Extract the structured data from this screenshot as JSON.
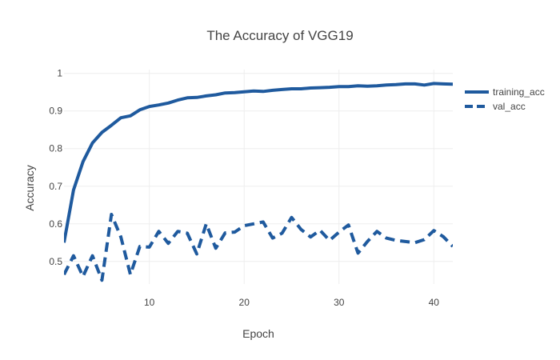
{
  "chart_data": {
    "type": "line",
    "title": "The Accuracy of VGG19",
    "xlabel": "Epoch",
    "ylabel": "Accuracy",
    "xlim": [
      1,
      42
    ],
    "ylim": [
      0.44,
      1.01
    ],
    "x_ticks": [
      10,
      20,
      30,
      40
    ],
    "y_ticks": [
      0.5,
      0.6,
      0.7,
      0.8,
      0.9,
      1
    ],
    "y_tick_labels": [
      "0.5",
      "0.6",
      "0.7",
      "0.8",
      "0.9",
      "1"
    ],
    "grid": true,
    "legend_position": "right",
    "series": [
      {
        "name": "training_acc",
        "color": "#1f5a9e",
        "dash": "solid",
        "x": [
          1,
          2,
          3,
          4,
          5,
          6,
          7,
          8,
          9,
          10,
          11,
          12,
          13,
          14,
          15,
          16,
          17,
          18,
          19,
          20,
          21,
          22,
          23,
          24,
          25,
          26,
          27,
          28,
          29,
          30,
          31,
          32,
          33,
          34,
          35,
          36,
          37,
          38,
          39,
          40,
          41,
          42
        ],
        "values": [
          0.55,
          0.69,
          0.765,
          0.815,
          0.843,
          0.862,
          0.882,
          0.887,
          0.903,
          0.912,
          0.916,
          0.921,
          0.929,
          0.935,
          0.936,
          0.94,
          0.943,
          0.948,
          0.949,
          0.951,
          0.953,
          0.952,
          0.955,
          0.957,
          0.959,
          0.959,
          0.961,
          0.962,
          0.963,
          0.965,
          0.965,
          0.967,
          0.966,
          0.967,
          0.969,
          0.97,
          0.972,
          0.972,
          0.969,
          0.973,
          0.972,
          0.971
        ]
      },
      {
        "name": "val_acc",
        "color": "#1f5a9e",
        "dash": "dash",
        "x": [
          1,
          2,
          3,
          4,
          5,
          6,
          7,
          8,
          9,
          10,
          11,
          12,
          13,
          14,
          15,
          16,
          17,
          18,
          19,
          20,
          21,
          22,
          23,
          24,
          25,
          26,
          27,
          28,
          29,
          30,
          31,
          32,
          33,
          34,
          35,
          36,
          37,
          38,
          39,
          40,
          41,
          42
        ],
        "values": [
          0.465,
          0.515,
          0.46,
          0.515,
          0.45,
          0.625,
          0.565,
          0.465,
          0.54,
          0.538,
          0.58,
          0.548,
          0.58,
          0.575,
          0.52,
          0.6,
          0.535,
          0.576,
          0.578,
          0.595,
          0.6,
          0.605,
          0.562,
          0.575,
          0.617,
          0.585,
          0.565,
          0.583,
          0.556,
          0.578,
          0.597,
          0.522,
          0.553,
          0.58,
          0.562,
          0.556,
          0.553,
          0.55,
          0.558,
          0.582,
          0.566,
          0.54
        ]
      }
    ]
  }
}
